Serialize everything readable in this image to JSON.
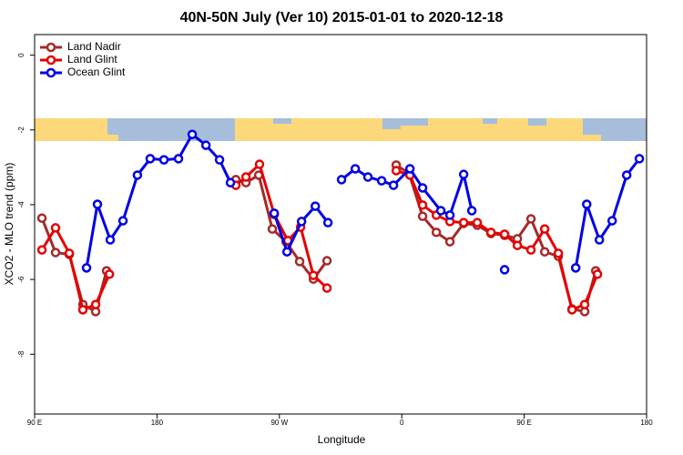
{
  "chart_data": {
    "type": "line",
    "title": "40N-50N July (Ver 10)   2015-01-01 to 2020-12-18",
    "xlabel": "Longitude",
    "ylabel": "XCO2 - MLO trend (ppm)",
    "xlim": [
      90,
      540
    ],
    "ylim": [
      -9.6,
      0.55
    ],
    "xticks": [
      {
        "value": 90,
        "label": "90 E"
      },
      180,
      {
        "value": 270,
        "label": "90 W"
      },
      {
        "value": 360,
        "label": "0"
      },
      {
        "value": 450,
        "label": "90 E"
      },
      {
        "value": 540,
        "label": "180"
      }
    ],
    "yticks": [
      0,
      -2,
      -4,
      -6,
      -8
    ],
    "legend": "top-left",
    "series": [
      {
        "name": "Land Nadir",
        "color": "#a52a2a",
        "x": [
          95.4,
          105.4,
          115.5,
          125.5,
          134.9,
          142.9,
          null,
          238,
          245.4,
          254.8,
          264.8,
          274.9,
          284.9,
          295,
          305,
          null,
          355.9,
          365.3,
          375.3,
          385.4,
          395.4,
          405.5,
          415.5,
          425.6,
          435.6,
          445,
          455,
          465.1,
          475.1,
          485.2,
          494.5,
          502.6
        ],
        "values": [
          -4.36,
          -5.28,
          -5.33,
          -6.67,
          -6.86,
          -5.77,
          null,
          -3.33,
          -3.41,
          -3.21,
          -4.65,
          -4.99,
          -5.52,
          -5.99,
          -5.5,
          null,
          -2.94,
          -3.16,
          -4.31,
          -4.74,
          -4.99,
          -4.5,
          -4.55,
          -4.77,
          -4.82,
          -4.91,
          -4.38,
          -5.26,
          -5.38,
          -6.79,
          -6.86,
          -5.77
        ]
      },
      {
        "name": "Land Glint",
        "color": "#e60000",
        "x": [
          95.4,
          105.4,
          115.5,
          125.5,
          134.9,
          145,
          null,
          238,
          245.4,
          255.4,
          266.2,
          276.2,
          285.6,
          295,
          305,
          null,
          355.9,
          366,
          375.3,
          385.4,
          395.4,
          405.5,
          415.5,
          425.6,
          435.6,
          445,
          455,
          465.1,
          475.1,
          485.2,
          494.5,
          503.9
        ],
        "values": [
          -5.21,
          -4.62,
          -5.3,
          -6.81,
          -6.67,
          -5.86,
          null,
          -3.48,
          -3.26,
          -2.92,
          -4.26,
          -4.96,
          -4.6,
          -5.89,
          -6.23,
          null,
          -3.09,
          -3.21,
          -4.01,
          -4.28,
          -4.45,
          -4.48,
          -4.48,
          -4.74,
          -4.79,
          -5.09,
          -5.21,
          -4.65,
          -5.3,
          -6.81,
          -6.67,
          -5.86
        ]
      },
      {
        "name": "Ocean Glint",
        "color": "#0000e6",
        "x": [
          128.2,
          136.2,
          145.6,
          155,
          165.6,
          175,
          185.1,
          195.8,
          205.9,
          216,
          226,
          234,
          null,
          266.2,
          275.6,
          286.3,
          296.4,
          305.7,
          null,
          315.7,
          325.8,
          335.1,
          345.2,
          353.9,
          366,
          375.3,
          388.7,
          395.4,
          405.5,
          411.5,
          null,
          435.6,
          null,
          487.9,
          496,
          505.3,
          514.7,
          525.4,
          534.7
        ],
        "values": [
          -5.69,
          -3.99,
          -4.94,
          -4.43,
          -3.21,
          -2.77,
          -2.8,
          -2.77,
          -2.12,
          -2.41,
          -2.8,
          -3.41,
          null,
          -4.23,
          -5.26,
          -4.45,
          -4.04,
          -4.48,
          null,
          -3.33,
          -3.04,
          -3.26,
          -3.36,
          -3.48,
          -3.04,
          -3.55,
          -4.16,
          -4.28,
          -3.19,
          -4.16,
          null,
          -5.74,
          null,
          -5.69,
          -3.99,
          -4.94,
          -4.43,
          -3.21,
          -2.77
        ]
      }
    ]
  }
}
